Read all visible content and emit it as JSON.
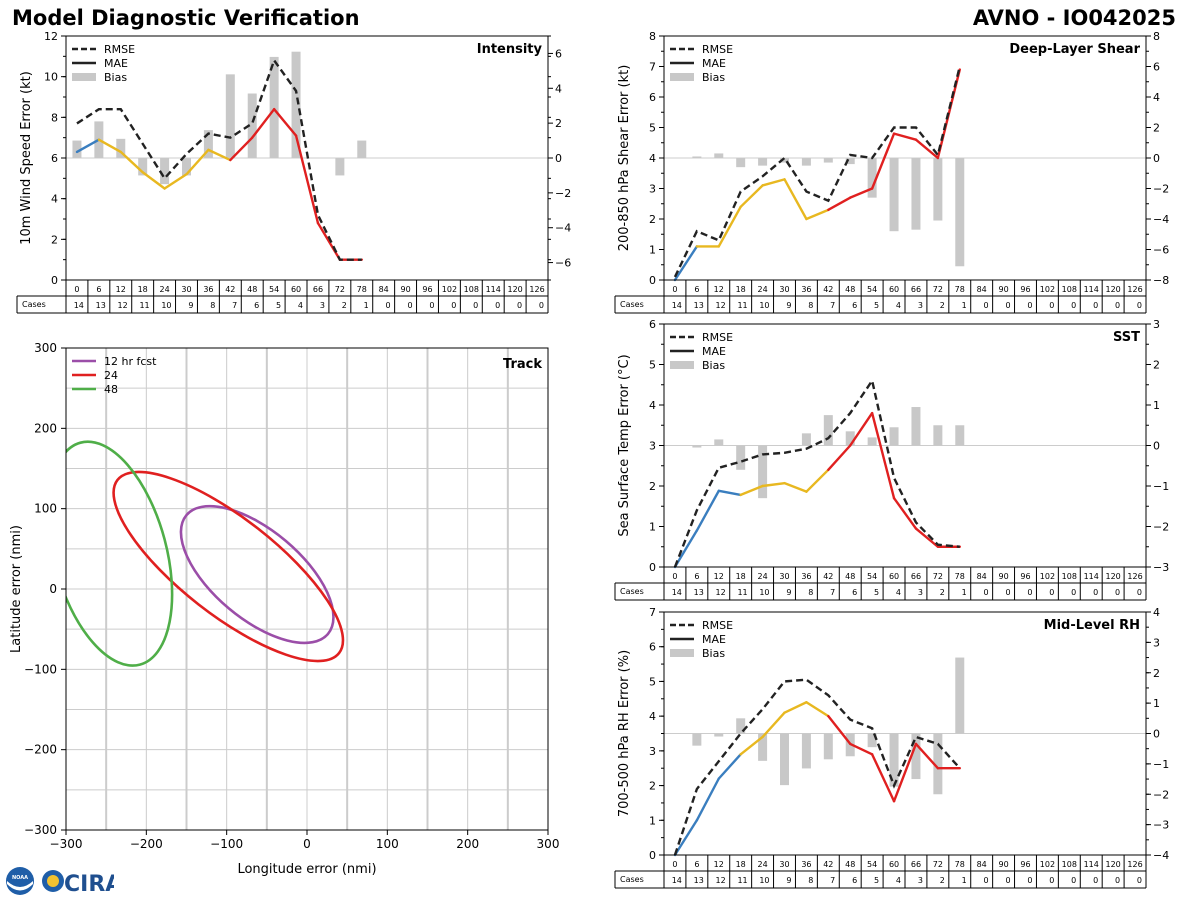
{
  "header": {
    "left_title": "Model Diagnostic Verification",
    "right_title": "AVNO - IO042025"
  },
  "logos": {
    "noaa": "NOAA",
    "cira": "CIRA"
  },
  "colors": {
    "rmse": "#222222",
    "mae_early": "#3a7ebf",
    "mae_mid": "#e8b820",
    "mae_late": "#e02020",
    "bias": "#c8c8c8",
    "grid": "#cccccc",
    "ell12": "#9b4ea8",
    "ell24": "#e02020",
    "ell48": "#4fae48"
  },
  "chart_data": [
    {
      "id": "intensity",
      "type": "line",
      "title": "Intensity",
      "ylabel": "10m Wind Speed Error (kt)",
      "ylim": [
        0,
        12
      ],
      "yticks": [
        0,
        2,
        4,
        6,
        8,
        10,
        12
      ],
      "y2lim": [
        -7,
        7
      ],
      "y2ticks": [
        -6,
        -4,
        -2,
        0,
        2,
        4,
        6
      ],
      "legend": [
        "RMSE",
        "MAE",
        "Bias"
      ],
      "hours": [
        0,
        6,
        12,
        18,
        24,
        30,
        36,
        42,
        48,
        54,
        60,
        66,
        72,
        78,
        84,
        90,
        96,
        102,
        108,
        114,
        120,
        126
      ],
      "cases_label": "Cases",
      "cases": [
        14,
        13,
        12,
        11,
        10,
        9,
        8,
        7,
        6,
        5,
        4,
        3,
        2,
        1,
        0,
        0,
        0,
        0,
        0,
        0,
        0,
        0
      ],
      "rmse": [
        7.7,
        8.4,
        8.4,
        6.7,
        5.0,
        6.2,
        7.2,
        7.0,
        7.7,
        10.8,
        9.3,
        3.2,
        1.0,
        1.0
      ],
      "mae": [
        6.3,
        6.9,
        6.3,
        5.3,
        4.5,
        5.2,
        6.4,
        5.9,
        7.0,
        8.4,
        7.1,
        2.8,
        1.0,
        1.0
      ],
      "bias": [
        1.0,
        2.1,
        1.1,
        -1.0,
        -1.5,
        -1.0,
        1.6,
        4.8,
        3.7,
        5.8,
        6.1,
        null,
        -1.0,
        1.0
      ]
    },
    {
      "id": "shear",
      "type": "line",
      "title": "Deep-Layer Shear",
      "ylabel": "200-850 hPa Shear Error (kt)",
      "ylim": [
        0,
        8
      ],
      "yticks": [
        0,
        1,
        2,
        3,
        4,
        5,
        6,
        7,
        8
      ],
      "y2lim": [
        -8,
        8
      ],
      "y2ticks": [
        -8,
        -6,
        -4,
        -2,
        0,
        2,
        4,
        6,
        8
      ],
      "legend": [
        "RMSE",
        "MAE",
        "Bias"
      ],
      "hours": [
        0,
        6,
        12,
        18,
        24,
        30,
        36,
        42,
        48,
        54,
        60,
        66,
        72,
        78,
        84,
        90,
        96,
        102,
        108,
        114,
        120,
        126
      ],
      "cases_label": "Cases",
      "cases": [
        14,
        13,
        12,
        11,
        10,
        9,
        8,
        7,
        6,
        5,
        4,
        3,
        2,
        1,
        0,
        0,
        0,
        0,
        0,
        0,
        0,
        0
      ],
      "rmse": [
        0.1,
        1.6,
        1.3,
        2.9,
        3.4,
        4.0,
        2.9,
        2.6,
        4.1,
        4.0,
        5.0,
        5.0,
        4.1,
        7.0
      ],
      "mae": [
        0.0,
        1.1,
        1.1,
        2.4,
        3.1,
        3.3,
        2.0,
        2.3,
        2.7,
        3.0,
        4.8,
        4.6,
        4.0,
        6.9
      ],
      "bias": [
        null,
        0.1,
        0.3,
        -0.6,
        -0.5,
        -0.3,
        -0.5,
        -0.3,
        -0.4,
        -2.6,
        -4.8,
        -4.7,
        -4.1,
        -7.1
      ]
    },
    {
      "id": "sst",
      "type": "line",
      "title": "SST",
      "ylabel": "Sea Surface Temp Error (°C)",
      "ylim": [
        0,
        6
      ],
      "yticks": [
        0,
        1,
        2,
        3,
        4,
        5,
        6
      ],
      "y2lim": [
        -3,
        3
      ],
      "y2ticks": [
        -3,
        -2,
        -1,
        0,
        1,
        2,
        3
      ],
      "legend": [
        "RMSE",
        "MAE",
        "Bias"
      ],
      "hours": [
        0,
        6,
        12,
        18,
        24,
        30,
        36,
        42,
        48,
        54,
        60,
        66,
        72,
        78,
        84,
        90,
        96,
        102,
        108,
        114,
        120,
        126
      ],
      "cases_label": "Cases",
      "cases": [
        14,
        13,
        12,
        11,
        10,
        9,
        8,
        7,
        6,
        5,
        4,
        3,
        2,
        1,
        0,
        0,
        0,
        0,
        0,
        0,
        0,
        0
      ],
      "rmse": [
        0.0,
        1.4,
        2.45,
        2.6,
        2.78,
        2.82,
        2.92,
        3.18,
        3.8,
        4.6,
        2.2,
        1.1,
        0.55,
        0.5
      ],
      "mae": [
        0.0,
        0.9,
        1.88,
        1.78,
        2.0,
        2.07,
        1.86,
        2.4,
        3.0,
        3.8,
        1.7,
        0.95,
        0.5,
        0.5
      ],
      "bias": [
        null,
        -0.05,
        0.15,
        -0.6,
        -1.3,
        0.0,
        0.3,
        0.75,
        0.35,
        0.2,
        0.45,
        0.95,
        0.5,
        0.5
      ]
    },
    {
      "id": "rh",
      "type": "line",
      "title": "Mid-Level RH",
      "ylabel": "700-500 hPa RH Error (%)",
      "ylim": [
        0,
        7
      ],
      "yticks": [
        0,
        1,
        2,
        3,
        4,
        5,
        6,
        7
      ],
      "y2lim": [
        -4,
        4
      ],
      "y2ticks": [
        -4,
        -3,
        -2,
        -1,
        0,
        1,
        2,
        3,
        4
      ],
      "legend": [
        "RMSE",
        "MAE",
        "Bias"
      ],
      "hours": [
        0,
        6,
        12,
        18,
        24,
        30,
        36,
        42,
        48,
        54,
        60,
        66,
        72,
        78,
        84,
        90,
        96,
        102,
        108,
        114,
        120,
        126
      ],
      "cases_label": "Cases",
      "cases": [
        14,
        13,
        12,
        11,
        10,
        9,
        8,
        7,
        6,
        5,
        4,
        3,
        2,
        1,
        0,
        0,
        0,
        0,
        0,
        0,
        0,
        0
      ],
      "rmse": [
        0.0,
        1.9,
        2.7,
        3.5,
        4.2,
        5.0,
        5.05,
        4.6,
        3.9,
        3.65,
        2.0,
        3.4,
        3.2,
        2.5
      ],
      "mae": [
        0.0,
        1.0,
        2.2,
        2.9,
        3.4,
        4.1,
        4.4,
        4.0,
        3.2,
        2.9,
        1.55,
        3.2,
        2.5,
        2.5
      ],
      "bias": [
        null,
        -0.4,
        -0.1,
        0.5,
        -0.9,
        -1.7,
        -1.15,
        -0.85,
        -0.75,
        -0.45,
        -1.75,
        -1.5,
        -2.0,
        2.5
      ]
    },
    {
      "id": "track",
      "type": "scatter",
      "title": "Track",
      "xlabel": "Longitude error (nmi)",
      "ylabel": "Latitude error (nmi)",
      "xlim": [
        -300,
        300
      ],
      "ylim": [
        -300,
        300
      ],
      "xticks": [
        -300,
        -200,
        -100,
        0,
        100,
        200,
        300
      ],
      "yticks": [
        -300,
        -200,
        -100,
        0,
        100,
        200,
        300
      ],
      "legend": [
        "12 hr fcst",
        "24",
        "48"
      ],
      "ellipses": [
        {
          "name": "12 hr fcst",
          "cx": -62,
          "cy": 18,
          "rx": 115,
          "ry": 55,
          "angle_deg": -40
        },
        {
          "name": "24",
          "cx": -98,
          "cy": 28,
          "rx": 175,
          "ry": 60,
          "angle_deg": -38
        },
        {
          "name": "48",
          "cx": -245,
          "cy": 44,
          "rx": 143,
          "ry": 70,
          "angle_deg": -75
        }
      ]
    }
  ]
}
